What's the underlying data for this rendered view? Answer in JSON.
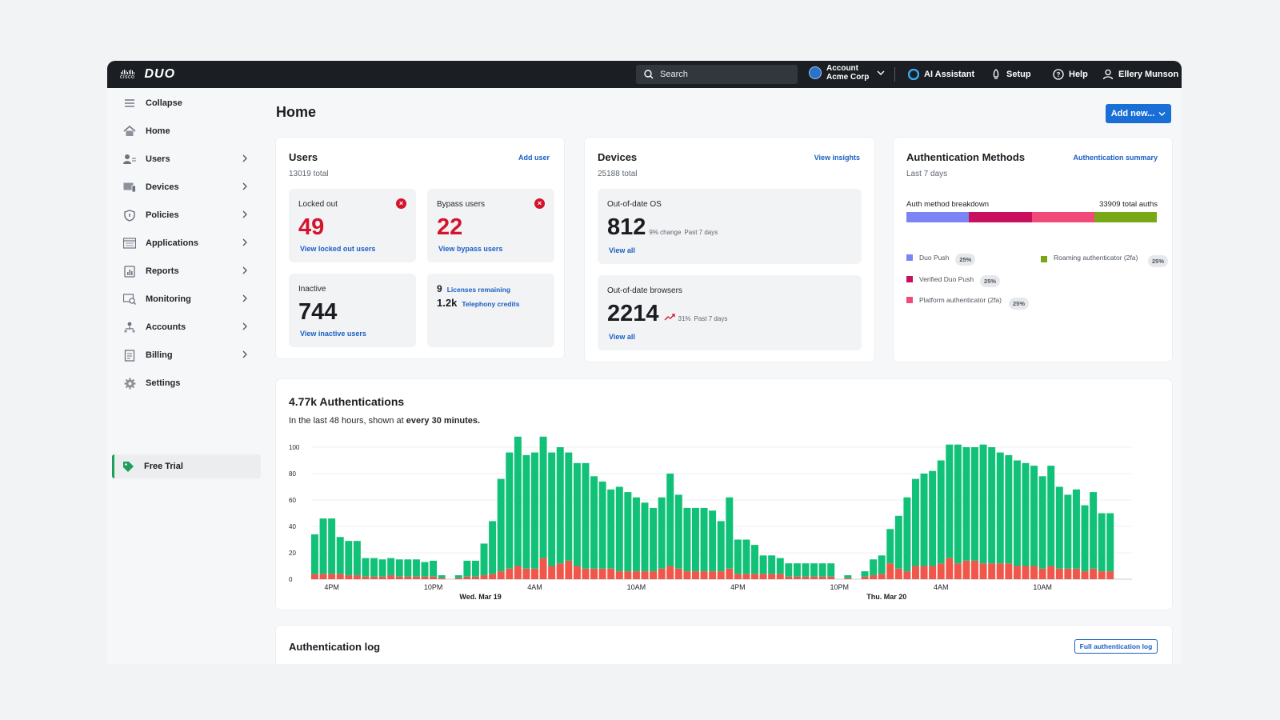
{
  "topbar": {
    "brand_small": "cisco",
    "brand": "DUO",
    "search_placeholder": "Search",
    "account_label": "Account",
    "account_name": "Acme Corp",
    "ai_assistant": "AI Assistant",
    "setup": "Setup",
    "help": "Help",
    "user": "Ellery Munson"
  },
  "sidebar": {
    "items": [
      {
        "label": "Collapse",
        "icon": "menu-icon"
      },
      {
        "label": "Home",
        "icon": "home-icon"
      },
      {
        "label": "Users",
        "icon": "users-icon"
      },
      {
        "label": "Devices",
        "icon": "devices-icon"
      },
      {
        "label": "Policies",
        "icon": "shield-icon"
      },
      {
        "label": "Applications",
        "icon": "applications-icon"
      },
      {
        "label": "Reports",
        "icon": "reports-icon"
      },
      {
        "label": "Monitoring",
        "icon": "monitoring-icon"
      },
      {
        "label": "Accounts",
        "icon": "accounts-icon"
      },
      {
        "label": "Billing",
        "icon": "billing-icon"
      },
      {
        "label": "Settings",
        "icon": "gear-icon"
      }
    ],
    "free_trial": "Free Trial"
  },
  "main": {
    "title": "Home",
    "add_new": "Add new..."
  },
  "users_card": {
    "title": "Users",
    "total": "13019 total",
    "link": "Add user",
    "locked_label": "Locked out",
    "locked_value": "49",
    "locked_link": "View locked out users",
    "bypass_label": "Bypass users",
    "bypass_value": "22",
    "bypass_link": "View bypass users",
    "inactive_label": "Inactive",
    "inactive_value": "744",
    "inactive_link": "View inactive users",
    "licenses_value": "9",
    "licenses_link": "Licenses remaining",
    "telephony_value": "1.2k",
    "telephony_link": "Telephony credits"
  },
  "devices_card": {
    "title": "Devices",
    "total": "25188 total",
    "link": "View insights",
    "os_label": "Out-of-date OS",
    "os_value": "812",
    "os_change": "9% change",
    "os_period": "Past 7 days",
    "os_link": "View all",
    "browsers_label": "Out-of-date browsers",
    "browsers_value": "2214",
    "browsers_change": "31%",
    "browsers_period": "Past 7 days",
    "browsers_link": "View all"
  },
  "auth_methods": {
    "title": "Authentication Methods",
    "subtitle": "Last 7 days",
    "link": "Authentication summary",
    "breakdown_label": "Auth method breakdown",
    "total": "33909 total auths",
    "methods": [
      {
        "name": "Duo Push",
        "pct": "25%",
        "color": "#7b84f5"
      },
      {
        "name": "Verified Duo Push",
        "pct": "25%",
        "color": "#c8105f"
      },
      {
        "name": "Platform authenticator (2fa)",
        "pct": "25%",
        "color": "#f0497a"
      },
      {
        "name": "Roaming authenticator (2fa)",
        "pct": "25%",
        "color": "#78a815"
      }
    ]
  },
  "auth_chart": {
    "title": "4.77k Authentications",
    "subtitle_prefix": "In the last 48 hours, shown at",
    "subtitle_bold": "every 30 minutes.",
    "day1": "Wed. Mar 19",
    "day2": "Thu. Mar 20"
  },
  "chart_data": {
    "type": "bar",
    "stacked": true,
    "ylim": [
      0,
      100
    ],
    "yticks": [
      0,
      20,
      40,
      60,
      80,
      100
    ],
    "xtick_labels": [
      {
        "index": 2,
        "label": "4PM"
      },
      {
        "index": 14,
        "label": "10PM"
      },
      {
        "index": 26,
        "label": "4AM"
      },
      {
        "index": 38,
        "label": "10AM"
      },
      {
        "index": 50,
        "label": "4PM"
      },
      {
        "index": 62,
        "label": "10PM"
      },
      {
        "index": 74,
        "label": "4AM"
      },
      {
        "index": 86,
        "label": "10AM"
      }
    ],
    "colors": {
      "success": "#12c178",
      "failure": "#f0574a"
    },
    "series": [
      {
        "name": "success",
        "values": [
          30,
          42,
          42,
          28,
          26,
          26,
          14,
          14,
          13,
          13,
          13,
          13,
          13,
          11,
          12,
          2,
          0,
          2,
          12,
          12,
          24,
          40,
          70,
          88,
          98,
          86,
          88,
          92,
          86,
          88,
          82,
          78,
          80,
          70,
          66,
          60,
          64,
          60,
          56,
          52,
          48,
          54,
          70,
          56,
          48,
          48,
          48,
          46,
          38,
          54,
          26,
          26,
          22,
          14,
          14,
          12,
          10,
          10,
          10,
          10,
          10,
          10,
          0,
          2,
          0,
          4,
          12,
          14,
          26,
          40,
          56,
          66,
          70,
          72,
          78,
          86,
          90,
          86,
          86,
          90,
          88,
          84,
          82,
          80,
          78,
          76,
          70,
          76,
          62,
          56,
          60,
          50,
          58,
          44,
          44,
          0,
          0
        ],
        "note": "success component"
      },
      {
        "name": "failure",
        "values": [
          4,
          4,
          4,
          4,
          3,
          3,
          2,
          2,
          2,
          3,
          2,
          2,
          2,
          2,
          2,
          1,
          0,
          1,
          2,
          2,
          3,
          4,
          6,
          8,
          10,
          8,
          8,
          16,
          10,
          12,
          14,
          10,
          8,
          8,
          8,
          8,
          6,
          6,
          6,
          6,
          6,
          8,
          10,
          8,
          6,
          6,
          6,
          6,
          6,
          8,
          4,
          4,
          4,
          4,
          4,
          4,
          2,
          2,
          2,
          2,
          2,
          2,
          0,
          1,
          0,
          2,
          3,
          4,
          12,
          8,
          6,
          10,
          10,
          10,
          12,
          16,
          12,
          14,
          14,
          12,
          12,
          12,
          12,
          10,
          10,
          10,
          8,
          10,
          8,
          8,
          8,
          6,
          8,
          6,
          6,
          0,
          0
        ]
      }
    ]
  },
  "auth_log": {
    "title": "Authentication log",
    "button": "Full authentication log"
  }
}
